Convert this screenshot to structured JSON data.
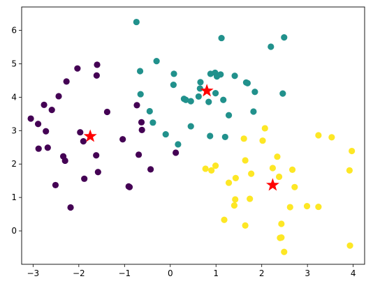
{
  "chart_data": {
    "type": "scatter",
    "title": "",
    "xlabel": "",
    "ylabel": "",
    "xlim": [
      -3.25,
      4.25
    ],
    "ylim": [
      -1.0,
      6.7
    ],
    "grid": false,
    "x_ticks": [
      -3,
      -2,
      -1,
      0,
      1,
      2,
      3,
      4
    ],
    "y_ticks": [
      0,
      1,
      2,
      3,
      4,
      5,
      6
    ],
    "x_tick_labels": [
      "−3",
      "−2",
      "−1",
      "0",
      "1",
      "2",
      "3",
      "4"
    ],
    "y_tick_labels": [
      "0",
      "1",
      "2",
      "3",
      "4",
      "5",
      "6"
    ],
    "colors": {
      "cluster_0": "#440154",
      "cluster_1": "#21918c",
      "cluster_2": "#fde725",
      "centroid": "#ff0000"
    },
    "clusters": [
      {
        "color_key": "cluster_0",
        "points": [
          [
            -2.03,
            4.86
          ],
          [
            -1.6,
            4.97
          ],
          [
            -1.61,
            4.65
          ],
          [
            -2.27,
            4.47
          ],
          [
            -2.44,
            4.03
          ],
          [
            -2.76,
            3.77
          ],
          [
            -2.59,
            3.62
          ],
          [
            -3.05,
            3.36
          ],
          [
            -2.89,
            3.2
          ],
          [
            -2.72,
            2.98
          ],
          [
            -1.97,
            2.95
          ],
          [
            -1.9,
            2.68
          ],
          [
            -2.88,
            2.46
          ],
          [
            -2.68,
            2.49
          ],
          [
            -2.34,
            2.23
          ],
          [
            -2.3,
            2.1
          ],
          [
            -1.62,
            2.26
          ],
          [
            -1.58,
            1.76
          ],
          [
            -2.51,
            1.37
          ],
          [
            -1.88,
            1.56
          ],
          [
            -2.18,
            0.7
          ],
          [
            -0.91,
            1.33
          ],
          [
            -0.89,
            1.31
          ],
          [
            -0.43,
            1.84
          ],
          [
            -0.69,
            2.28
          ],
          [
            -1.38,
            3.56
          ],
          [
            -0.73,
            3.76
          ],
          [
            -0.63,
            3.25
          ],
          [
            -0.62,
            3.02
          ],
          [
            -1.04,
            2.74
          ],
          [
            0.12,
            2.34
          ]
        ]
      },
      {
        "color_key": "cluster_1",
        "points": [
          [
            -0.74,
            6.25
          ],
          [
            1.12,
            5.77
          ],
          [
            2.49,
            5.79
          ],
          [
            2.2,
            5.51
          ],
          [
            -0.3,
            5.08
          ],
          [
            -0.66,
            4.78
          ],
          [
            0.08,
            4.7
          ],
          [
            0.88,
            4.7
          ],
          [
            0.98,
            4.73
          ],
          [
            1.1,
            4.68
          ],
          [
            1.02,
            4.62
          ],
          [
            1.41,
            4.64
          ],
          [
            0.07,
            4.37
          ],
          [
            0.66,
            4.45
          ],
          [
            0.65,
            4.26
          ],
          [
            1.66,
            4.44
          ],
          [
            1.69,
            4.42
          ],
          [
            0.62,
            4.02
          ],
          [
            0.99,
            4.12
          ],
          [
            1.85,
            4.16
          ],
          [
            2.46,
            4.11
          ],
          [
            -0.65,
            4.09
          ],
          [
            0.3,
            3.95
          ],
          [
            0.34,
            3.92
          ],
          [
            0.45,
            3.88
          ],
          [
            0.84,
            3.86
          ],
          [
            1.16,
            3.92
          ],
          [
            -0.45,
            3.58
          ],
          [
            1.82,
            3.57
          ],
          [
            -0.38,
            3.24
          ],
          [
            1.28,
            3.46
          ],
          [
            0.45,
            3.13
          ],
          [
            -0.1,
            2.89
          ],
          [
            0.87,
            2.84
          ],
          [
            1.2,
            2.81
          ],
          [
            0.17,
            2.59
          ]
        ]
      },
      {
        "color_key": "cluster_2",
        "points": [
          [
            2.07,
            3.07
          ],
          [
            3.24,
            2.86
          ],
          [
            3.53,
            2.8
          ],
          [
            1.61,
            2.76
          ],
          [
            2.02,
            2.7
          ],
          [
            3.97,
            2.39
          ],
          [
            2.34,
            2.22
          ],
          [
            1.64,
            2.11
          ],
          [
            0.99,
            1.95
          ],
          [
            0.77,
            1.86
          ],
          [
            0.9,
            1.81
          ],
          [
            2.24,
            1.88
          ],
          [
            2.67,
            1.83
          ],
          [
            3.92,
            1.81
          ],
          [
            1.77,
            1.71
          ],
          [
            2.38,
            1.62
          ],
          [
            1.43,
            1.58
          ],
          [
            1.28,
            1.44
          ],
          [
            2.72,
            1.31
          ],
          [
            1.42,
            0.94
          ],
          [
            1.4,
            0.76
          ],
          [
            1.74,
            0.96
          ],
          [
            2.99,
            0.74
          ],
          [
            3.24,
            0.72
          ],
          [
            2.62,
            0.71
          ],
          [
            1.18,
            0.33
          ],
          [
            1.64,
            0.16
          ],
          [
            2.43,
            0.21
          ],
          [
            2.4,
            -0.21
          ],
          [
            2.49,
            -0.63
          ],
          [
            3.93,
            -0.44
          ],
          [
            2.43,
            -0.2
          ]
        ]
      }
    ],
    "centroids": [
      [
        -1.75,
        2.83
      ],
      [
        0.8,
        4.19
      ],
      [
        2.24,
        1.37
      ]
    ]
  }
}
